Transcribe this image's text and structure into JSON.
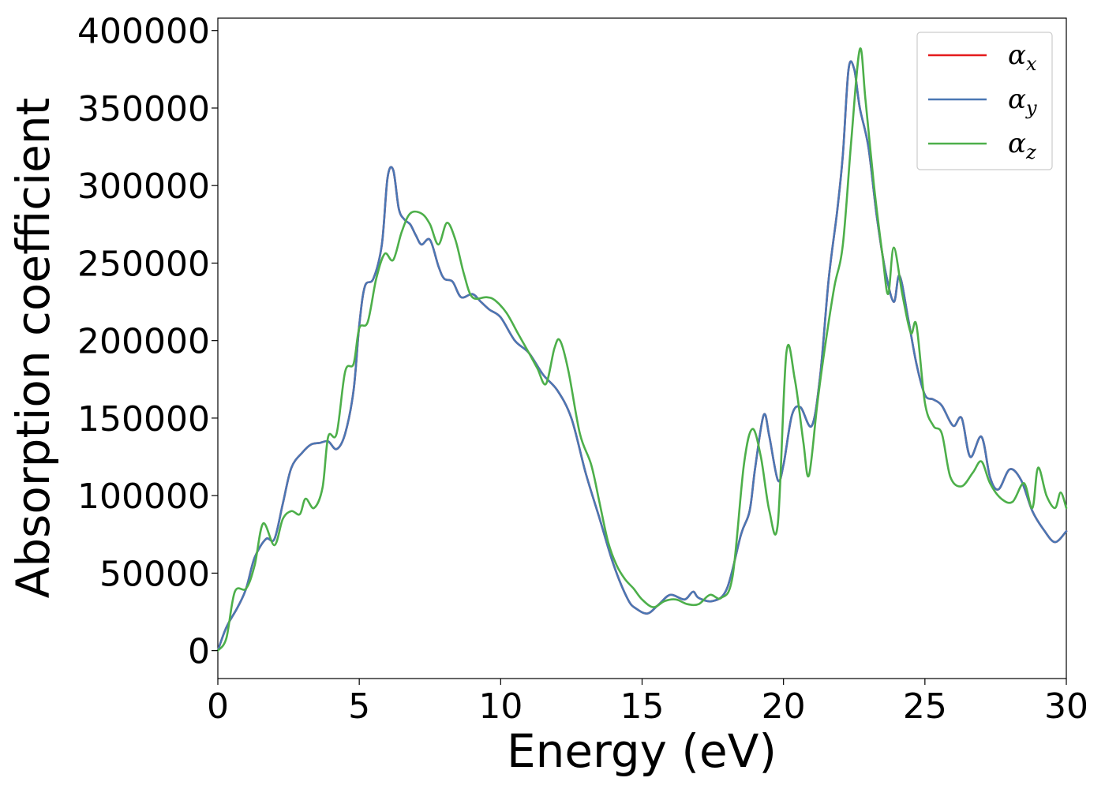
{
  "chart_data": {
    "type": "line",
    "title": "",
    "xlabel": "Energy (eV)",
    "ylabel": "Absorption coefficient",
    "xlim": [
      0,
      30
    ],
    "ylim": [
      -18000,
      408000
    ],
    "x_ticks": [
      0,
      5,
      10,
      15,
      20,
      25,
      30
    ],
    "x_tick_labels": [
      "0",
      "5",
      "10",
      "15",
      "20",
      "25",
      "30"
    ],
    "y_ticks": [
      0,
      50000,
      100000,
      150000,
      200000,
      250000,
      300000,
      350000,
      400000
    ],
    "y_tick_labels": [
      "0",
      "50000",
      "100000",
      "150000",
      "200000",
      "250000",
      "300000",
      "350000",
      "400000"
    ],
    "grid": false,
    "legend_position": "top-right",
    "series": [
      {
        "name": "α",
        "subscript": "x",
        "color": "#e41a1c",
        "points": [
          [
            0,
            0
          ],
          [
            0.3,
            15000
          ],
          [
            0.7,
            28000
          ],
          [
            1.0,
            40000
          ],
          [
            1.3,
            60000
          ],
          [
            1.7,
            72000
          ],
          [
            2.0,
            72000
          ],
          [
            2.3,
            95000
          ],
          [
            2.6,
            118000
          ],
          [
            3.0,
            128000
          ],
          [
            3.3,
            133000
          ],
          [
            3.6,
            134000
          ],
          [
            3.9,
            135000
          ],
          [
            4.2,
            130000
          ],
          [
            4.5,
            140000
          ],
          [
            4.8,
            168000
          ],
          [
            5.0,
            210000
          ],
          [
            5.2,
            235000
          ],
          [
            5.5,
            240000
          ],
          [
            5.8,
            262000
          ],
          [
            6.0,
            305000
          ],
          [
            6.2,
            310000
          ],
          [
            6.4,
            285000
          ],
          [
            6.6,
            278000
          ],
          [
            6.8,
            275000
          ],
          [
            7.0,
            268000
          ],
          [
            7.2,
            262000
          ],
          [
            7.5,
            265000
          ],
          [
            7.8,
            248000
          ],
          [
            8.0,
            240000
          ],
          [
            8.3,
            238000
          ],
          [
            8.6,
            228000
          ],
          [
            9.0,
            230000
          ],
          [
            9.3,
            225000
          ],
          [
            9.6,
            220000
          ],
          [
            10.0,
            215000
          ],
          [
            10.5,
            200000
          ],
          [
            11.0,
            192000
          ],
          [
            11.5,
            178000
          ],
          [
            12.0,
            168000
          ],
          [
            12.5,
            150000
          ],
          [
            13.0,
            115000
          ],
          [
            13.5,
            85000
          ],
          [
            14.0,
            55000
          ],
          [
            14.5,
            33000
          ],
          [
            14.8,
            27000
          ],
          [
            15.2,
            24000
          ],
          [
            15.6,
            30000
          ],
          [
            16.0,
            36000
          ],
          [
            16.5,
            33000
          ],
          [
            16.8,
            38000
          ],
          [
            17.0,
            34000
          ],
          [
            17.5,
            32000
          ],
          [
            18.0,
            40000
          ],
          [
            18.5,
            75000
          ],
          [
            18.8,
            90000
          ],
          [
            19.0,
            118000
          ],
          [
            19.3,
            152000
          ],
          [
            19.5,
            138000
          ],
          [
            19.8,
            110000
          ],
          [
            20.0,
            120000
          ],
          [
            20.3,
            152000
          ],
          [
            20.6,
            157000
          ],
          [
            21.0,
            145000
          ],
          [
            21.3,
            178000
          ],
          [
            21.6,
            240000
          ],
          [
            21.9,
            284000
          ],
          [
            22.1,
            320000
          ],
          [
            22.3,
            375000
          ],
          [
            22.5,
            375000
          ],
          [
            22.7,
            350000
          ],
          [
            23.0,
            325000
          ],
          [
            23.3,
            280000
          ],
          [
            23.6,
            245000
          ],
          [
            23.9,
            225000
          ],
          [
            24.1,
            242000
          ],
          [
            24.4,
            215000
          ],
          [
            24.7,
            185000
          ],
          [
            25.0,
            165000
          ],
          [
            25.3,
            162000
          ],
          [
            25.6,
            158000
          ],
          [
            26.0,
            145000
          ],
          [
            26.3,
            150000
          ],
          [
            26.6,
            125000
          ],
          [
            27.0,
            138000
          ],
          [
            27.3,
            112000
          ],
          [
            27.6,
            104000
          ],
          [
            28.0,
            117000
          ],
          [
            28.4,
            110000
          ],
          [
            28.8,
            90000
          ],
          [
            29.2,
            78000
          ],
          [
            29.6,
            70000
          ],
          [
            30.0,
            77000
          ]
        ]
      },
      {
        "name": "α",
        "subscript": "y",
        "color": "#4a77b4",
        "points": [
          [
            0,
            0
          ],
          [
            0.3,
            15000
          ],
          [
            0.7,
            28000
          ],
          [
            1.0,
            40000
          ],
          [
            1.3,
            60000
          ],
          [
            1.7,
            72000
          ],
          [
            2.0,
            72000
          ],
          [
            2.3,
            95000
          ],
          [
            2.6,
            118000
          ],
          [
            3.0,
            128000
          ],
          [
            3.3,
            133000
          ],
          [
            3.6,
            134000
          ],
          [
            3.9,
            135000
          ],
          [
            4.2,
            130000
          ],
          [
            4.5,
            140000
          ],
          [
            4.8,
            168000
          ],
          [
            5.0,
            210000
          ],
          [
            5.2,
            235000
          ],
          [
            5.5,
            240000
          ],
          [
            5.8,
            262000
          ],
          [
            6.0,
            305000
          ],
          [
            6.2,
            310000
          ],
          [
            6.4,
            285000
          ],
          [
            6.6,
            278000
          ],
          [
            6.8,
            275000
          ],
          [
            7.0,
            268000
          ],
          [
            7.2,
            262000
          ],
          [
            7.5,
            265000
          ],
          [
            7.8,
            248000
          ],
          [
            8.0,
            240000
          ],
          [
            8.3,
            238000
          ],
          [
            8.6,
            228000
          ],
          [
            9.0,
            230000
          ],
          [
            9.3,
            225000
          ],
          [
            9.6,
            220000
          ],
          [
            10.0,
            215000
          ],
          [
            10.5,
            200000
          ],
          [
            11.0,
            192000
          ],
          [
            11.5,
            178000
          ],
          [
            12.0,
            168000
          ],
          [
            12.5,
            150000
          ],
          [
            13.0,
            115000
          ],
          [
            13.5,
            85000
          ],
          [
            14.0,
            55000
          ],
          [
            14.5,
            33000
          ],
          [
            14.8,
            27000
          ],
          [
            15.2,
            24000
          ],
          [
            15.6,
            30000
          ],
          [
            16.0,
            36000
          ],
          [
            16.5,
            33000
          ],
          [
            16.8,
            38000
          ],
          [
            17.0,
            34000
          ],
          [
            17.5,
            32000
          ],
          [
            18.0,
            40000
          ],
          [
            18.5,
            75000
          ],
          [
            18.8,
            90000
          ],
          [
            19.0,
            118000
          ],
          [
            19.3,
            152000
          ],
          [
            19.5,
            138000
          ],
          [
            19.8,
            110000
          ],
          [
            20.0,
            120000
          ],
          [
            20.3,
            152000
          ],
          [
            20.6,
            157000
          ],
          [
            21.0,
            145000
          ],
          [
            21.3,
            178000
          ],
          [
            21.6,
            240000
          ],
          [
            21.9,
            284000
          ],
          [
            22.1,
            320000
          ],
          [
            22.3,
            375000
          ],
          [
            22.5,
            375000
          ],
          [
            22.7,
            350000
          ],
          [
            23.0,
            325000
          ],
          [
            23.3,
            280000
          ],
          [
            23.6,
            245000
          ],
          [
            23.9,
            225000
          ],
          [
            24.1,
            242000
          ],
          [
            24.4,
            215000
          ],
          [
            24.7,
            185000
          ],
          [
            25.0,
            165000
          ],
          [
            25.3,
            162000
          ],
          [
            25.6,
            158000
          ],
          [
            26.0,
            145000
          ],
          [
            26.3,
            150000
          ],
          [
            26.6,
            125000
          ],
          [
            27.0,
            138000
          ],
          [
            27.3,
            112000
          ],
          [
            27.6,
            104000
          ],
          [
            28.0,
            117000
          ],
          [
            28.4,
            110000
          ],
          [
            28.8,
            90000
          ],
          [
            29.2,
            78000
          ],
          [
            29.6,
            70000
          ],
          [
            30.0,
            77000
          ]
        ]
      },
      {
        "name": "α",
        "subscript": "z",
        "color": "#4daf4a",
        "points": [
          [
            0,
            0
          ],
          [
            0.3,
            8000
          ],
          [
            0.6,
            38000
          ],
          [
            1.0,
            40000
          ],
          [
            1.3,
            55000
          ],
          [
            1.6,
            82000
          ],
          [
            2.0,
            68000
          ],
          [
            2.3,
            85000
          ],
          [
            2.6,
            90000
          ],
          [
            2.9,
            88000
          ],
          [
            3.1,
            98000
          ],
          [
            3.4,
            92000
          ],
          [
            3.7,
            105000
          ],
          [
            3.9,
            138000
          ],
          [
            4.2,
            140000
          ],
          [
            4.5,
            180000
          ],
          [
            4.8,
            185000
          ],
          [
            5.0,
            208000
          ],
          [
            5.3,
            212000
          ],
          [
            5.6,
            240000
          ],
          [
            5.9,
            256000
          ],
          [
            6.2,
            252000
          ],
          [
            6.5,
            270000
          ],
          [
            6.8,
            282000
          ],
          [
            7.2,
            282000
          ],
          [
            7.5,
            275000
          ],
          [
            7.8,
            262000
          ],
          [
            8.1,
            276000
          ],
          [
            8.4,
            265000
          ],
          [
            8.7,
            243000
          ],
          [
            9.0,
            228000
          ],
          [
            9.5,
            228000
          ],
          [
            9.8,
            226000
          ],
          [
            10.2,
            218000
          ],
          [
            10.6,
            205000
          ],
          [
            11.0,
            192000
          ],
          [
            11.3,
            182000
          ],
          [
            11.6,
            172000
          ],
          [
            11.9,
            195000
          ],
          [
            12.1,
            200000
          ],
          [
            12.4,
            180000
          ],
          [
            12.8,
            140000
          ],
          [
            13.2,
            120000
          ],
          [
            13.5,
            95000
          ],
          [
            13.8,
            70000
          ],
          [
            14.1,
            55000
          ],
          [
            14.4,
            46000
          ],
          [
            14.7,
            40000
          ],
          [
            15.0,
            33000
          ],
          [
            15.4,
            28000
          ],
          [
            15.8,
            32000
          ],
          [
            16.2,
            33000
          ],
          [
            16.6,
            30000
          ],
          [
            17.0,
            30000
          ],
          [
            17.4,
            36000
          ],
          [
            17.8,
            34000
          ],
          [
            18.2,
            48000
          ],
          [
            18.6,
            120000
          ],
          [
            18.9,
            143000
          ],
          [
            19.2,
            125000
          ],
          [
            19.5,
            90000
          ],
          [
            19.8,
            82000
          ],
          [
            20.1,
            192000
          ],
          [
            20.4,
            175000
          ],
          [
            20.7,
            135000
          ],
          [
            20.9,
            113000
          ],
          [
            21.2,
            160000
          ],
          [
            21.5,
            200000
          ],
          [
            21.8,
            235000
          ],
          [
            22.1,
            262000
          ],
          [
            22.4,
            330000
          ],
          [
            22.7,
            388000
          ],
          [
            22.9,
            355000
          ],
          [
            23.2,
            300000
          ],
          [
            23.5,
            255000
          ],
          [
            23.7,
            230000
          ],
          [
            23.9,
            260000
          ],
          [
            24.2,
            230000
          ],
          [
            24.5,
            205000
          ],
          [
            24.7,
            210000
          ],
          [
            25.0,
            160000
          ],
          [
            25.3,
            145000
          ],
          [
            25.6,
            140000
          ],
          [
            25.9,
            112000
          ],
          [
            26.3,
            106000
          ],
          [
            26.7,
            115000
          ],
          [
            27.0,
            122000
          ],
          [
            27.3,
            108000
          ],
          [
            27.7,
            98000
          ],
          [
            28.1,
            96000
          ],
          [
            28.5,
            108000
          ],
          [
            28.8,
            92000
          ],
          [
            29.0,
            118000
          ],
          [
            29.3,
            100000
          ],
          [
            29.6,
            92000
          ],
          [
            29.8,
            102000
          ],
          [
            30.0,
            92000
          ]
        ]
      }
    ]
  }
}
